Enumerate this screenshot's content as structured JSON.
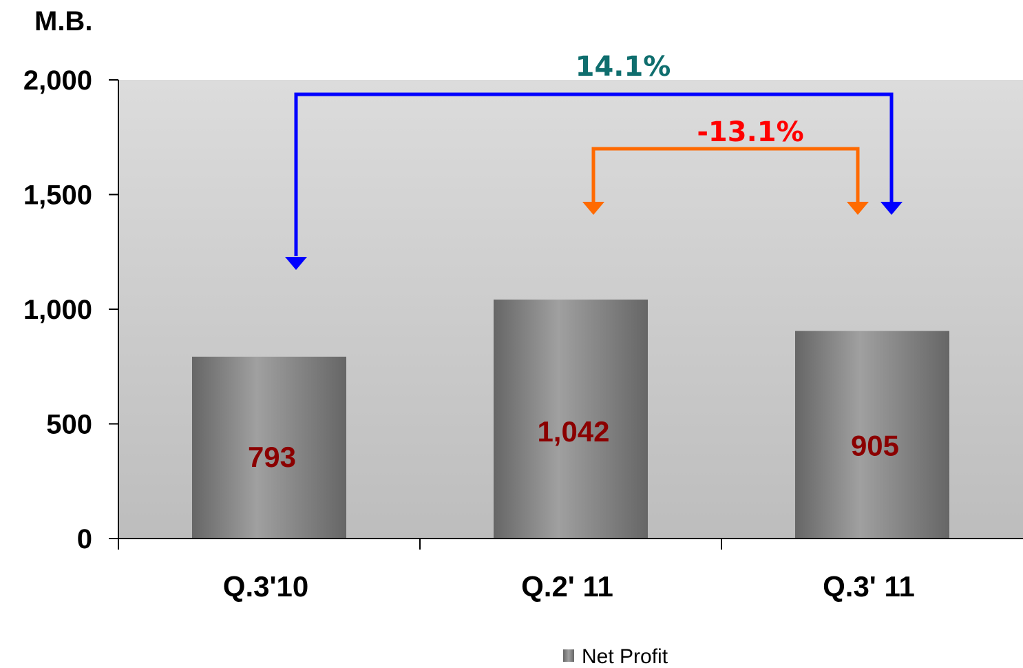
{
  "chart_data": {
    "type": "bar",
    "unit_label": "M.B.",
    "categories": [
      "Q.3'10",
      "Q.2' 11",
      "Q.3' 11"
    ],
    "series": [
      {
        "name": "Net Profit",
        "values": [
          793,
          1042,
          905
        ],
        "data_labels": [
          "793",
          "1,042",
          "905"
        ]
      }
    ],
    "ylim": [
      0,
      2000
    ],
    "yticks": [
      0,
      500,
      1000,
      1500,
      2000
    ],
    "ytick_labels": [
      "0",
      "500",
      "1,000",
      "1,500",
      "2,000"
    ],
    "legend": {
      "position": "bottom",
      "entries": [
        "Net Profit"
      ]
    },
    "grid": false,
    "colors": {
      "bar_dark": "#666666",
      "bar_light": "#a0a0a0",
      "data_label": "#8b0000",
      "plot_bg_top": "#dcdcdc",
      "plot_bg_bottom": "#bdbdbd",
      "yoy_arrow": "#0000ff",
      "yoy_label": "#0f6e6e",
      "qoq_arrow": "#ff6a00",
      "qoq_label": "#ff0000"
    },
    "annotations": [
      {
        "name": "yoy-change",
        "text": "14.1%",
        "from": "Q.3'10",
        "to": "Q.3' 11"
      },
      {
        "name": "qoq-change",
        "text": "-13.1%",
        "from": "Q.2' 11",
        "to": "Q.3' 11"
      }
    ]
  }
}
